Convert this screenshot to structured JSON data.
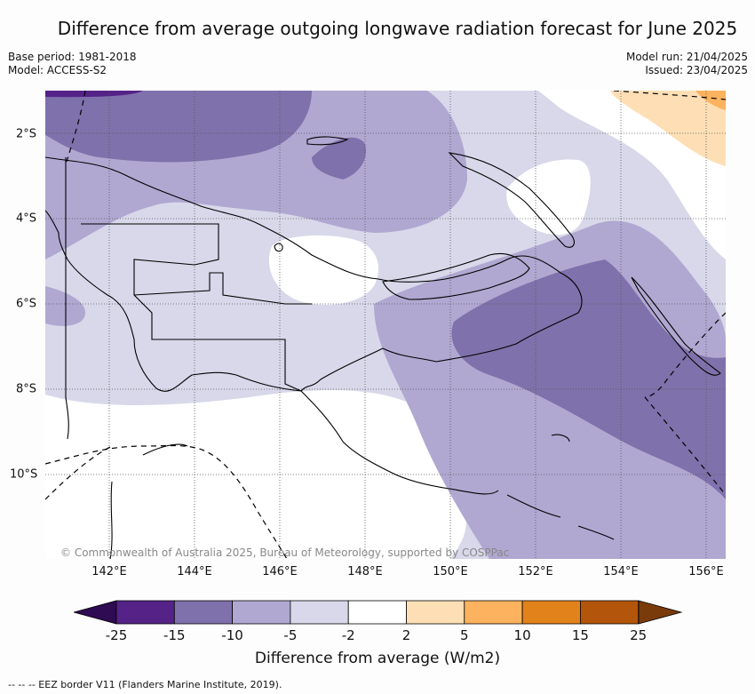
{
  "title": "Difference from average outgoing longwave radiation forecast for June 2025",
  "base_period": "Base period: 1981-2018",
  "model": "Model: ACCESS-S2",
  "model_run": "Model run: 21/04/2025",
  "issued": "Issued: 23/04/2025",
  "copyright": "© Commonwealth of Australia 2025, Bureau of Meteorology, supported by COSPPac",
  "x_axis": {
    "ticks": [
      "142°E",
      "144°E",
      "146°E",
      "148°E",
      "150°E",
      "152°E",
      "154°E",
      "156°E"
    ]
  },
  "y_axis": {
    "ticks": [
      "2°S",
      "4°S",
      "6°S",
      "8°S",
      "10°S"
    ]
  },
  "colorbar": {
    "title": "Difference from average (W/m2)",
    "labels": [
      "-25",
      "-15",
      "-10",
      "-5",
      "-2",
      "2",
      "5",
      "10",
      "15",
      "25"
    ],
    "colors": [
      "#2e0b52",
      "#552388",
      "#7f71ab",
      "#b0a8d1",
      "#d8d8ea",
      "#ffffff",
      "#fedfb5",
      "#fcb25e",
      "#e2821b",
      "#b3560b",
      "#7a3b0a"
    ]
  },
  "footnote": "--  --  -- EEZ border V11 (Flanders Marine Institute, 2019).",
  "colors": {
    "land_outline": "#000000",
    "grid": "#555555",
    "eez_border": "#000000"
  }
}
